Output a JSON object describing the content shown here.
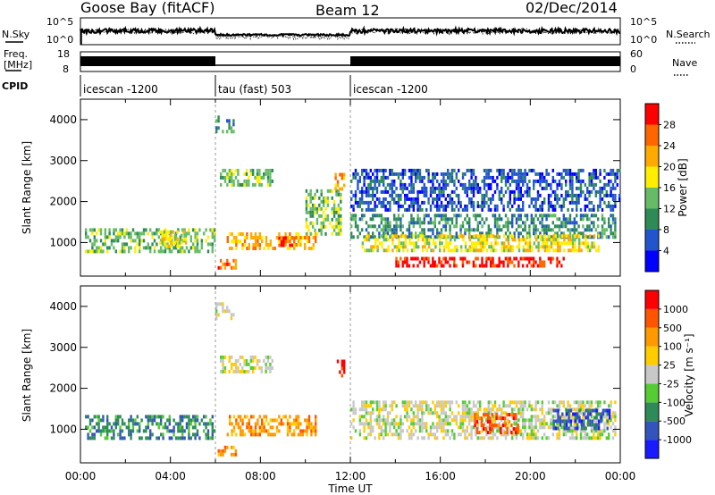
{
  "header": {
    "station": "Goose Bay (fitACF)",
    "beam": "Beam 12",
    "date": "02/Dec/2014"
  },
  "status_panels": {
    "nsky": {
      "label": "N.Sky",
      "ticks": [
        "10^5",
        "10^0"
      ]
    },
    "nsearch": {
      "label": "N.Search",
      "ticks": [
        "10^5",
        "10^0"
      ]
    },
    "freq": {
      "label_line1": "Freq.",
      "label_line2": "[MHz]",
      "ticks": [
        "18",
        "8"
      ]
    },
    "nave": {
      "label": "Nave",
      "ticks": [
        "60",
        "0"
      ]
    },
    "cpid": {
      "label": "CPID",
      "segments": [
        {
          "name": "icescan -1200",
          "start_h": 0,
          "end_h": 6
        },
        {
          "name": "tau (fast) 503",
          "start_h": 6,
          "end_h": 12
        },
        {
          "name": "icescan -1200",
          "start_h": 12,
          "end_h": 24
        }
      ]
    }
  },
  "chart_data": [
    {
      "type": "heatmap",
      "title": "",
      "xlabel": "",
      "ylabel": "Slant Range [km]",
      "colorbar_label": "Power [dB]",
      "xlim": [
        0,
        24
      ],
      "ylim": [
        180,
        4500
      ],
      "ytick_labels": [
        "1000",
        "2000",
        "3000",
        "4000"
      ],
      "yticks": [
        1000,
        2000,
        3000,
        4000
      ],
      "colorbar_ticks": [
        "4",
        "8",
        "12",
        "16",
        "20",
        "24",
        "28"
      ],
      "colorbar_colors": [
        "#0000ff",
        "#2255cc",
        "#2e8b57",
        "#66bb66",
        "#ffee00",
        "#ffaa00",
        "#ff6600",
        "#ff0000"
      ],
      "echo_regions": [
        {
          "t0": 0.2,
          "t1": 6.0,
          "r0": 750,
          "r1": 1350,
          "level": 3
        },
        {
          "t0": 3.5,
          "t1": 4.7,
          "r0": 900,
          "r1": 1300,
          "level": 4
        },
        {
          "t0": 6.1,
          "t1": 6.9,
          "r0": 350,
          "r1": 600,
          "level": 6
        },
        {
          "t0": 6.5,
          "t1": 10.5,
          "r0": 900,
          "r1": 1250,
          "level": 5
        },
        {
          "t0": 8.7,
          "t1": 9.5,
          "r0": 950,
          "r1": 1150,
          "level": 7
        },
        {
          "t0": 6.2,
          "t1": 8.5,
          "r0": 2400,
          "r1": 2800,
          "level": 3
        },
        {
          "t0": 6.0,
          "t1": 6.8,
          "r0": 3700,
          "r1": 4100,
          "level": 2
        },
        {
          "t0": 10.0,
          "t1": 11.6,
          "r0": 1200,
          "r1": 2300,
          "level": 3
        },
        {
          "t0": 11.3,
          "t1": 11.7,
          "r0": 2300,
          "r1": 2700,
          "level": 5
        },
        {
          "t0": 12.0,
          "t1": 23.8,
          "r0": 1100,
          "r1": 1700,
          "level": 2
        },
        {
          "t0": 12.5,
          "t1": 23.0,
          "r0": 800,
          "r1": 1200,
          "level": 4
        },
        {
          "t0": 14.0,
          "t1": 21.5,
          "r0": 400,
          "r1": 650,
          "level": 7
        },
        {
          "t0": 12.0,
          "t1": 24.0,
          "r0": 1800,
          "r1": 2800,
          "level": 1
        }
      ]
    },
    {
      "type": "heatmap",
      "title": "",
      "xlabel": "Time UT",
      "ylabel": "Slant Range [km]",
      "colorbar_label": "Velocity [m s⁻¹]",
      "xlim": [
        0,
        24
      ],
      "ylim": [
        180,
        4500
      ],
      "ytick_labels": [
        "1000",
        "2000",
        "3000",
        "4000"
      ],
      "yticks": [
        1000,
        2000,
        3000,
        4000
      ],
      "xtick_labels": [
        "00:00",
        "04:00",
        "08:00",
        "12:00",
        "16:00",
        "20:00",
        "00:00"
      ],
      "xticks": [
        0,
        4,
        8,
        12,
        16,
        20,
        24
      ],
      "colorbar_ticks": [
        "1000",
        "500",
        "100",
        "25",
        "-25",
        "-100",
        "-500",
        "-1000"
      ],
      "colorbar_colors": [
        "#1a1aff",
        "#3355bb",
        "#2e8b57",
        "#55cc33",
        "#c8c8c8",
        "#ffcc00",
        "#ff9900",
        "#ff5500",
        "#ff0000"
      ],
      "echo_regions": [
        {
          "t0": 0.2,
          "t1": 6.0,
          "r0": 750,
          "r1": 1350,
          "level": 2
        },
        {
          "t0": 6.1,
          "t1": 6.9,
          "r0": 350,
          "r1": 600,
          "level": 6
        },
        {
          "t0": 6.5,
          "t1": 10.5,
          "r0": 900,
          "r1": 1350,
          "level": 6
        },
        {
          "t0": 6.2,
          "t1": 8.5,
          "r0": 2400,
          "r1": 2800,
          "level": 4
        },
        {
          "t0": 6.0,
          "t1": 6.8,
          "r0": 3700,
          "r1": 4100,
          "level": 4
        },
        {
          "t0": 11.3,
          "t1": 11.7,
          "r0": 2300,
          "r1": 2700,
          "level": 8
        },
        {
          "t0": 12.0,
          "t1": 23.8,
          "r0": 800,
          "r1": 1700,
          "level": 4
        },
        {
          "t0": 17.5,
          "t1": 19.5,
          "r0": 900,
          "r1": 1400,
          "level": 7
        },
        {
          "t0": 21.0,
          "t1": 23.5,
          "r0": 1000,
          "r1": 1500,
          "level": 1
        }
      ]
    }
  ]
}
